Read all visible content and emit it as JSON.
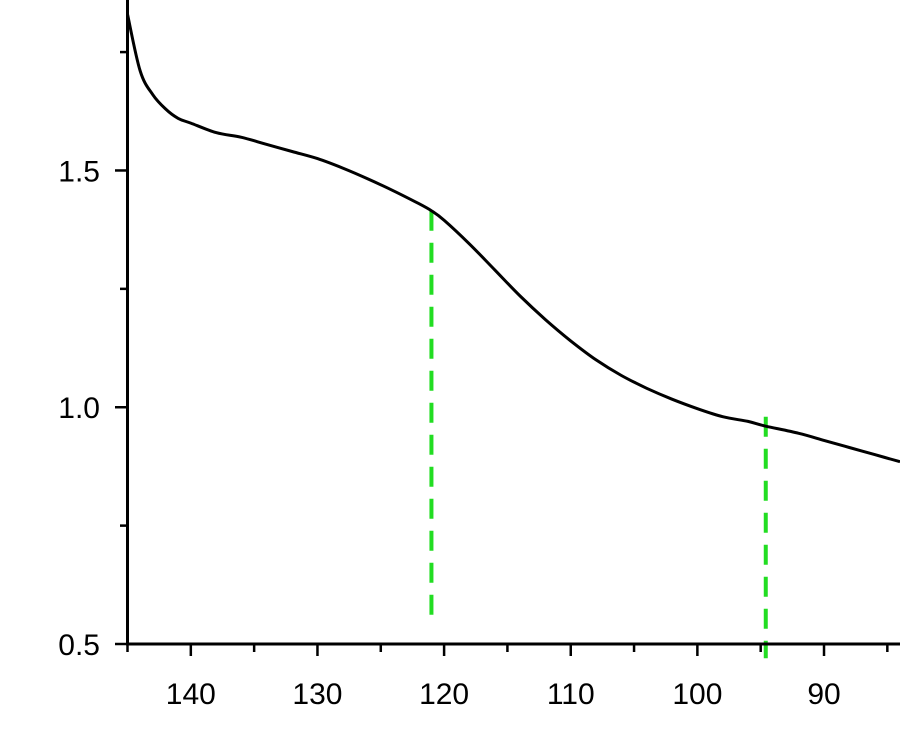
{
  "chart_data": {
    "type": "line",
    "title": "",
    "xlabel": "",
    "ylabel": "",
    "x_reversed": true,
    "xlim": [
      145,
      84
    ],
    "ylim": [
      0.5,
      1.86
    ],
    "x_ticks": [
      140,
      130,
      120,
      110,
      100,
      90
    ],
    "y_ticks": [
      0.5,
      1.0,
      1.5
    ],
    "x_tick_labels": [
      "140",
      "130",
      "120",
      "110",
      "100",
      "90"
    ],
    "y_tick_labels": [
      "0.5",
      "1.0",
      "1.5"
    ],
    "grid": false,
    "series": [
      {
        "color": "#000000",
        "x": [
          145,
          144,
          143,
          142,
          141,
          140,
          138,
          136,
          134,
          132,
          130,
          128,
          126,
          124,
          122,
          121,
          120,
          118,
          116,
          114,
          112,
          110,
          108,
          106,
          104,
          102,
          100,
          98,
          96,
          94.6,
          92,
          90,
          88,
          86,
          84
        ],
        "y": [
          1.83,
          1.71,
          1.66,
          1.63,
          1.61,
          1.6,
          1.58,
          1.57,
          1.555,
          1.54,
          1.525,
          1.505,
          1.482,
          1.457,
          1.43,
          1.415,
          1.395,
          1.345,
          1.29,
          1.235,
          1.185,
          1.14,
          1.1,
          1.067,
          1.04,
          1.017,
          0.997,
          0.98,
          0.97,
          0.96,
          0.945,
          0.93,
          0.915,
          0.9,
          0.885
        ]
      }
    ],
    "markers": [
      {
        "x": 121,
        "y_from": 0.55,
        "y_to": 1.415,
        "color": "#22dd22",
        "style": "dashed"
      },
      {
        "x": 94.6,
        "y_from": 0.47,
        "y_to": 0.98,
        "color": "#22dd22",
        "style": "dashed"
      }
    ]
  }
}
